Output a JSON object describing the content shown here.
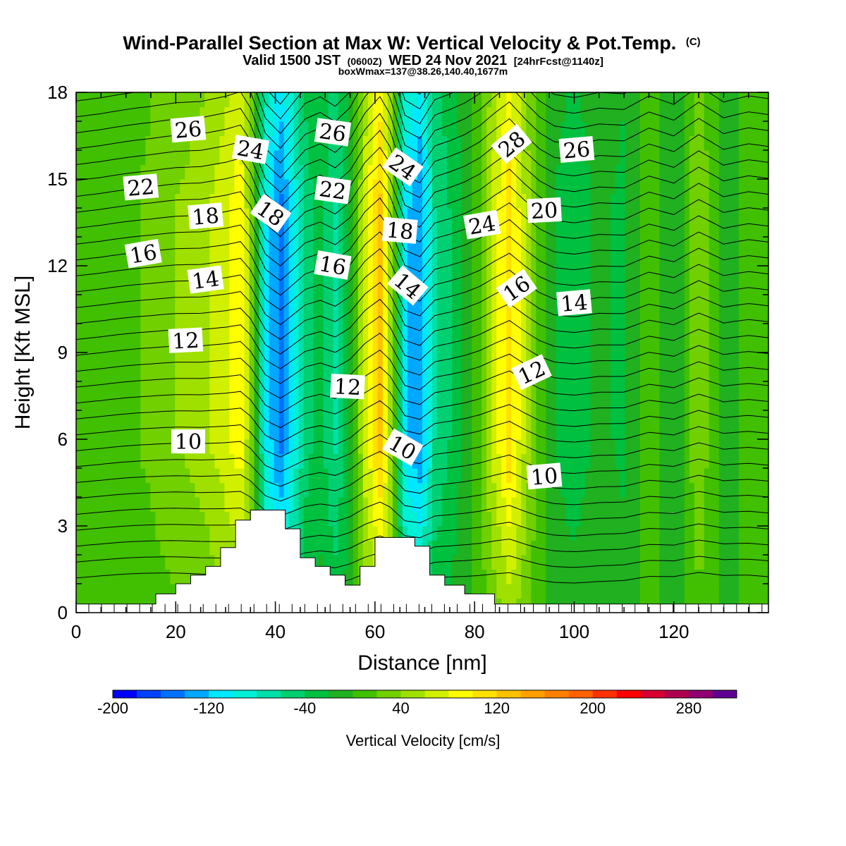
{
  "header": {
    "title_main": "Wind-Parallel Section at Max W: Vertical Velocity & Pot.Temp.",
    "title_mark": "(C)",
    "valid_lead": "Valid 1500 JST",
    "valid_utc": "(0600Z)",
    "valid_date": "WED 24 Nov 2021",
    "valid_fcst": "[24hrFcst@1140z]",
    "box_info": "boxWmax=137@38.26,140.40,1677m"
  },
  "chart_data": {
    "type": "heatmap",
    "xlabel": "Distance [nm]",
    "ylabel": "Height [Kft MSL]",
    "xlim": [
      0,
      139
    ],
    "ylim": [
      0,
      18
    ],
    "x_ticks": [
      0,
      20,
      40,
      60,
      80,
      100,
      120
    ],
    "y_ticks": [
      0,
      3,
      6,
      9,
      12,
      15,
      18
    ],
    "grid": false,
    "colorbar": {
      "label": "Vertical Velocity [cm/s]",
      "placement": "bottom",
      "range": [
        -200,
        320
      ],
      "step": 20,
      "tick_labels": [
        -200,
        -120,
        -40,
        40,
        120,
        200,
        280
      ],
      "colors": [
        "#0000ff",
        "#0040ff",
        "#0070ff",
        "#00a8ff",
        "#00e8ff",
        "#00f0d8",
        "#00e0a8",
        "#00d070",
        "#00c040",
        "#20b020",
        "#40c000",
        "#70d000",
        "#a0e000",
        "#d0f000",
        "#ffff00",
        "#ffe000",
        "#ffc000",
        "#ffa000",
        "#ff8000",
        "#ff6000",
        "#ff3000",
        "#ff0000",
        "#d80030",
        "#b00050",
        "#900070",
        "#600090"
      ]
    },
    "velocity_columns_cm_s": [
      {
        "x": 0,
        "w": 0
      },
      {
        "x": 5,
        "w": 5
      },
      {
        "x": 10,
        "w": 15
      },
      {
        "x": 15,
        "w": 25
      },
      {
        "x": 20,
        "w": 40
      },
      {
        "x": 25,
        "w": 50
      },
      {
        "x": 30,
        "w": 75
      },
      {
        "x": 33,
        "w": 95
      },
      {
        "x": 35,
        "w": 40
      },
      {
        "x": 38,
        "w": -100
      },
      {
        "x": 41,
        "w": -150
      },
      {
        "x": 44,
        "w": -90
      },
      {
        "x": 46,
        "w": -50
      },
      {
        "x": 49,
        "w": -30
      },
      {
        "x": 52,
        "w": -65
      },
      {
        "x": 55,
        "w": -20
      },
      {
        "x": 58,
        "w": 70
      },
      {
        "x": 61,
        "w": 125
      },
      {
        "x": 63,
        "w": 60
      },
      {
        "x": 66,
        "w": -110
      },
      {
        "x": 69,
        "w": -140
      },
      {
        "x": 72,
        "w": -60
      },
      {
        "x": 75,
        "w": -40
      },
      {
        "x": 78,
        "w": -15
      },
      {
        "x": 81,
        "w": 20
      },
      {
        "x": 84,
        "w": 70
      },
      {
        "x": 87,
        "w": 115
      },
      {
        "x": 90,
        "w": 60
      },
      {
        "x": 93,
        "w": 10
      },
      {
        "x": 96,
        "w": -20
      },
      {
        "x": 100,
        "w": -30
      },
      {
        "x": 105,
        "w": -15
      },
      {
        "x": 110,
        "w": -25
      },
      {
        "x": 115,
        "w": 15
      },
      {
        "x": 120,
        "w": -20
      },
      {
        "x": 125,
        "w": 40
      },
      {
        "x": 130,
        "w": -15
      },
      {
        "x": 135,
        "w": 10
      },
      {
        "x": 139,
        "w": 5
      }
    ],
    "terrain_kft": [
      {
        "x": 0,
        "h": 0.3
      },
      {
        "x": 16,
        "h": 0.65
      },
      {
        "x": 20,
        "h": 1.0
      },
      {
        "x": 23,
        "h": 1.3
      },
      {
        "x": 26,
        "h": 1.6
      },
      {
        "x": 29,
        "h": 2.25
      },
      {
        "x": 32,
        "h": 3.2
      },
      {
        "x": 35,
        "h": 3.55
      },
      {
        "x": 42,
        "h": 2.9
      },
      {
        "x": 45,
        "h": 1.9
      },
      {
        "x": 48,
        "h": 1.6
      },
      {
        "x": 51,
        "h": 1.3
      },
      {
        "x": 54,
        "h": 0.95
      },
      {
        "x": 57,
        "h": 1.6
      },
      {
        "x": 60,
        "h": 2.6
      },
      {
        "x": 68,
        "h": 2.3
      },
      {
        "x": 71,
        "h": 1.3
      },
      {
        "x": 74,
        "h": 0.95
      },
      {
        "x": 78,
        "h": 0.65
      },
      {
        "x": 84,
        "h": 0.3
      },
      {
        "x": 139,
        "h": 0.3
      }
    ],
    "pot_temp_labels_c": [
      {
        "text": "26",
        "x": 22.5,
        "y": 16.7,
        "rot": -5
      },
      {
        "text": "24",
        "x": 35,
        "y": 16.0,
        "rot": 10
      },
      {
        "text": "26",
        "x": 51.5,
        "y": 16.6,
        "rot": 8
      },
      {
        "text": "24",
        "x": 65.5,
        "y": 15.4,
        "rot": 35
      },
      {
        "text": "28",
        "x": 87.5,
        "y": 16.2,
        "rot": -40
      },
      {
        "text": "26",
        "x": 100.5,
        "y": 16.0,
        "rot": -5
      },
      {
        "text": "22",
        "x": 13,
        "y": 14.7,
        "rot": -5
      },
      {
        "text": "22",
        "x": 51.5,
        "y": 14.6,
        "rot": 8
      },
      {
        "text": "20",
        "x": 94,
        "y": 13.9,
        "rot": -3
      },
      {
        "text": "18",
        "x": 26,
        "y": 13.7,
        "rot": -5
      },
      {
        "text": "18",
        "x": 39,
        "y": 13.8,
        "rot": 35
      },
      {
        "text": "18",
        "x": 65,
        "y": 13.2,
        "rot": 5
      },
      {
        "text": "24",
        "x": 81.5,
        "y": 13.4,
        "rot": -10
      },
      {
        "text": "16",
        "x": 13.5,
        "y": 12.4,
        "rot": -10
      },
      {
        "text": "16",
        "x": 51.5,
        "y": 12.0,
        "rot": 10
      },
      {
        "text": "14",
        "x": 26,
        "y": 11.5,
        "rot": -8
      },
      {
        "text": "14",
        "x": 66.5,
        "y": 11.3,
        "rot": 40
      },
      {
        "text": "16",
        "x": 88.5,
        "y": 11.2,
        "rot": -35
      },
      {
        "text": "14",
        "x": 100,
        "y": 10.7,
        "rot": -5
      },
      {
        "text": "12",
        "x": 22,
        "y": 9.4,
        "rot": -3
      },
      {
        "text": "12",
        "x": 54.5,
        "y": 7.8,
        "rot": 3
      },
      {
        "text": "12",
        "x": 91.5,
        "y": 8.3,
        "rot": -25
      },
      {
        "text": "10",
        "x": 22.5,
        "y": 5.9,
        "rot": 0
      },
      {
        "text": "10",
        "x": 65.5,
        "y": 5.7,
        "rot": 30
      },
      {
        "text": "10",
        "x": 94,
        "y": 4.7,
        "rot": -5
      }
    ]
  }
}
